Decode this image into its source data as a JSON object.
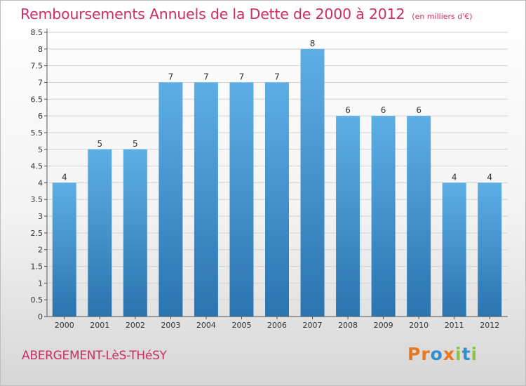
{
  "header": {
    "title": "Remboursements Annuels de la Dette de 2000 à 2012",
    "subtitle": "(en milliers d'€)"
  },
  "footer": {
    "commune": "ABERGEMENT-LèS-THéSY",
    "brand": {
      "letters": [
        "P",
        "r",
        "o",
        "x",
        "i",
        "t",
        "i"
      ]
    }
  },
  "colors": {
    "title": "#cc2d67",
    "bar_top": "#5eaee6",
    "bar_bottom": "#2a74b0",
    "brand_letters": [
      "#e8771e",
      "#e8771e",
      "#2f8fd0",
      "#e8771e",
      "#8cc63f",
      "#2f8fd0",
      "#8cc63f"
    ]
  },
  "chart_data": {
    "type": "bar",
    "title": "Remboursements Annuels de la Dette de 2000 à 2012",
    "subtitle": "(en milliers d'€)",
    "categories": [
      "2000",
      "2001",
      "2002",
      "2003",
      "2004",
      "2005",
      "2006",
      "2007",
      "2008",
      "2009",
      "2010",
      "2011",
      "2012"
    ],
    "values": [
      4,
      5,
      5,
      7,
      7,
      7,
      7,
      8,
      6,
      6,
      6,
      4,
      4
    ],
    "data_labels": [
      "4",
      "5",
      "5",
      "7",
      "7",
      "7",
      "7",
      "8",
      "6",
      "6",
      "6",
      "4",
      "4"
    ],
    "ylim": [
      0,
      8.5
    ],
    "yticks": [
      0,
      0.5,
      1,
      1.5,
      2,
      2.5,
      3,
      3.5,
      4,
      4.5,
      5,
      5.5,
      6,
      6.5,
      7,
      7.5,
      8,
      8.5
    ],
    "ytick_labels": [
      "0",
      "0.5",
      "1",
      "1.5",
      "2",
      "2.5",
      "3",
      "3.5",
      "4",
      "4.5",
      "5",
      "5.5",
      "6",
      "6.5",
      "7",
      "7.5",
      "8",
      "8.5"
    ],
    "grid": true,
    "legend": "none"
  }
}
